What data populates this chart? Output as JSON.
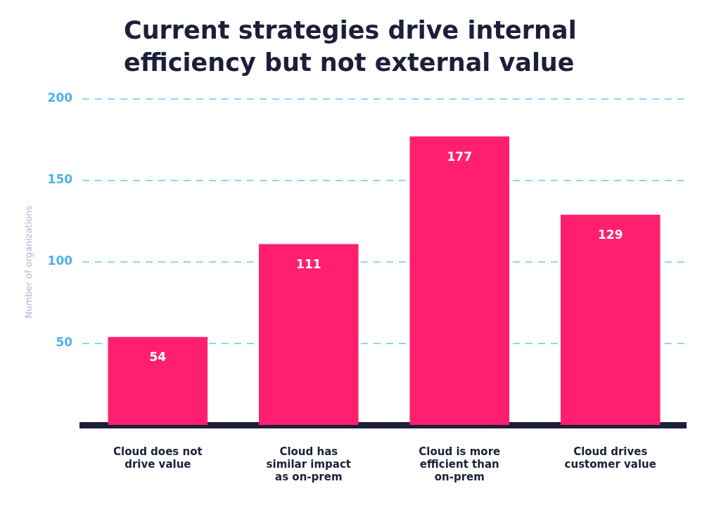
{
  "chart_data": {
    "type": "bar",
    "title": "Current strategies drive internal efficiency but not external value",
    "ylabel": "Number of organizations",
    "categories": [
      "Cloud does not drive value",
      "Cloud has similar impact as on-prem",
      "Cloud is more efficient than on-prem",
      "Cloud drives customer value"
    ],
    "values": [
      54,
      111,
      177,
      129
    ],
    "color": "#ff1f6e",
    "ylim": [
      0,
      200
    ],
    "yticks": [
      50,
      100,
      150,
      200
    ],
    "grid": "y",
    "legend": false,
    "data_labels": true
  }
}
